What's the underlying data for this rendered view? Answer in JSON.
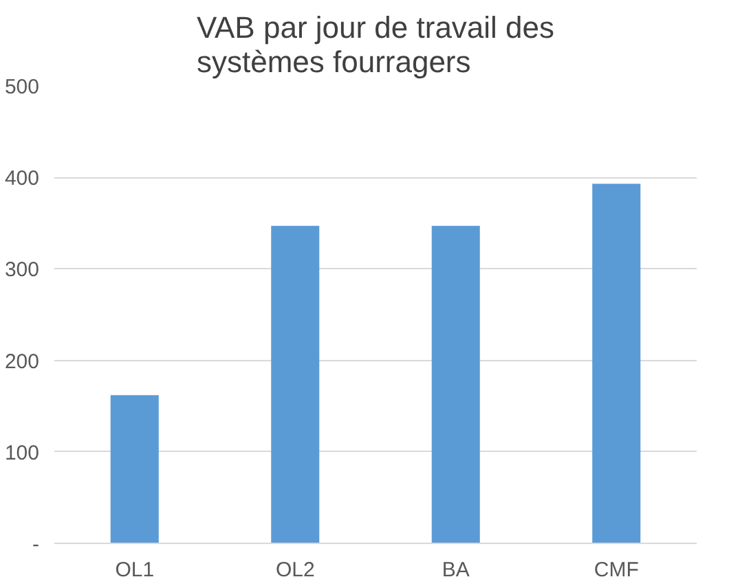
{
  "chart_data": {
    "type": "bar",
    "title": "VAB par jour de travail des\nsystèmes fourragers",
    "categories": [
      "OL1",
      "OL2",
      "BA",
      "CMF"
    ],
    "values": [
      162,
      347,
      347,
      393
    ],
    "color": "#5b9bd5",
    "ylim": [
      0,
      500
    ],
    "yticks": [
      {
        "value": 0,
        "label": "-"
      },
      100,
      200,
      300,
      400,
      500
    ],
    "grid": "y"
  }
}
